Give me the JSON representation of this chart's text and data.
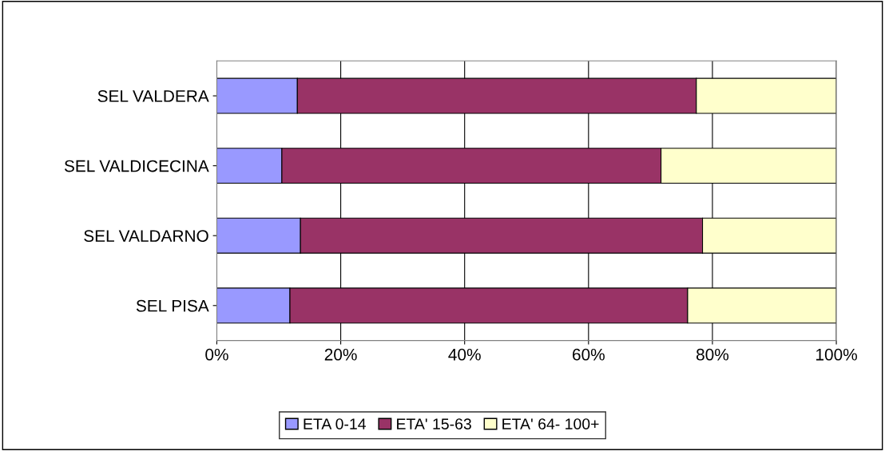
{
  "chart_data": {
    "type": "bar",
    "orientation": "horizontal",
    "stacked": true,
    "categories": [
      "SEL VALDERA",
      "SEL VALDICECINA",
      "SEL VALDARNO",
      "SEL PISA"
    ],
    "series": [
      {
        "name": "ETA 0-14",
        "color": "#9999ff",
        "values": [
          13.0,
          10.5,
          13.5,
          11.8
        ]
      },
      {
        "name": "ETA' 15-63",
        "color": "#993366",
        "values": [
          64.4,
          61.2,
          64.9,
          64.2
        ]
      },
      {
        "name": "ETA' 64- 100+",
        "color": "#ffffcc",
        "values": [
          22.6,
          28.3,
          21.6,
          24.0
        ]
      }
    ],
    "xlim": [
      0,
      100
    ],
    "xticks": [
      {
        "value": 0,
        "label": "0%"
      },
      {
        "value": 20,
        "label": "20%"
      },
      {
        "value": 40,
        "label": "40%"
      },
      {
        "value": 60,
        "label": "60%"
      },
      {
        "value": 80,
        "label": "80%"
      },
      {
        "value": 100,
        "label": "100%"
      }
    ],
    "grid": "x",
    "legend": "bottom"
  }
}
